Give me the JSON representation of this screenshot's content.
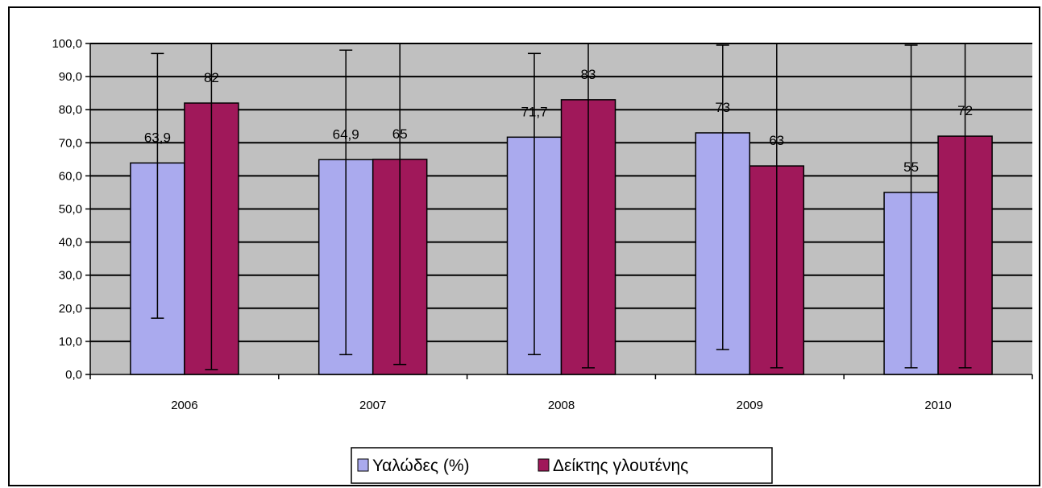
{
  "chart_data": {
    "type": "bar",
    "categories": [
      "2006",
      "2007",
      "2008",
      "2009",
      "2010"
    ],
    "series": [
      {
        "name": "Υαλώδες (%)",
        "values": [
          63.9,
          64.9,
          71.7,
          73,
          55
        ],
        "data_labels": [
          "63,9",
          "64,9",
          "71,7",
          "73",
          "55"
        ],
        "error_low": [
          17,
          6,
          6,
          7.5,
          2
        ],
        "error_high": [
          97,
          98,
          97,
          99.5,
          99.5
        ],
        "color": "#aaaaee"
      },
      {
        "name": "Δείκτης γλουτένης",
        "values": [
          82,
          65,
          83,
          63,
          72
        ],
        "data_labels": [
          "82",
          "65",
          "83",
          "63",
          "72"
        ],
        "error_low": [
          1.5,
          3,
          2,
          2,
          2
        ],
        "error_high": [
          100,
          100,
          100,
          100,
          100
        ],
        "color": "#a0185a"
      }
    ],
    "y_tick_labels": [
      "0,0",
      "10,0",
      "20,0",
      "30,0",
      "40,0",
      "50,0",
      "60,0",
      "70,0",
      "80,0",
      "90,0",
      "100,0"
    ],
    "ylim": [
      0,
      100
    ],
    "grid": true,
    "plot_background": "#c0c0c0",
    "legend_position": "bottom"
  }
}
